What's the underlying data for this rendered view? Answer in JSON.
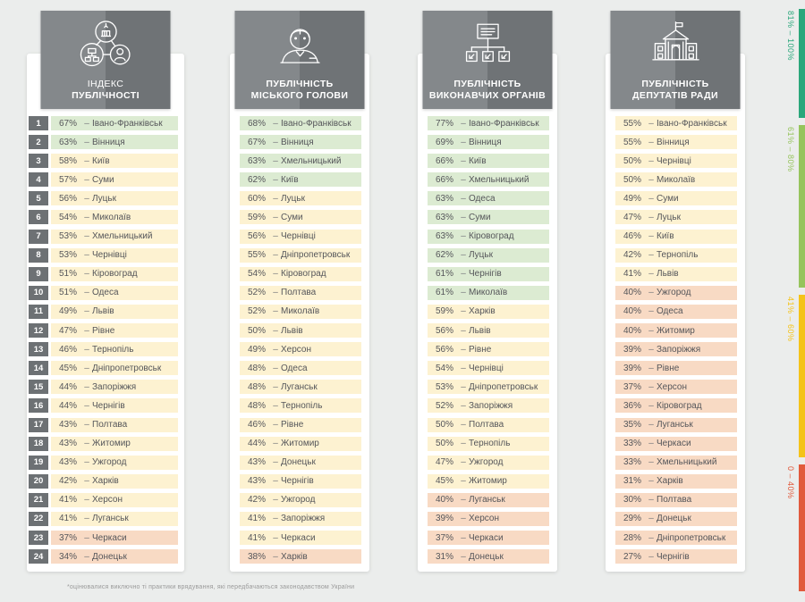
{
  "page": {
    "footnote": "*оцінювалися виключно ті практики врядування, які передбачаються законодавством України"
  },
  "tier_colors": {
    "green": "#dcebd2",
    "yellow": "#fdf2d1",
    "red": "#f8dac4"
  },
  "legend": {
    "items": [
      {
        "label": "81% – 100%",
        "color": "#2aa77b"
      },
      {
        "label": "61% – 80%",
        "color": "#96c45c"
      },
      {
        "label": "41% – 60%",
        "color": "#f4c319"
      },
      {
        "label": "0 – 40%",
        "color": "#e15a3c"
      }
    ]
  },
  "chart_data": {
    "type": "table",
    "title": "Індекс публічності міст України",
    "legend_bins": [
      "81%–100%",
      "61%–80%",
      "41%–60%",
      "0–40%"
    ],
    "columns": [
      "Індекс публічності",
      "Публічність міського голови",
      "Публічність виконавчих органів",
      "Публічність депутатів ради"
    ]
  },
  "columns": [
    {
      "id": "index",
      "icon": "publicity-index-icon",
      "title_line1": "ІНДЕКС",
      "title_line2": "ПУБЛІЧНОСТІ",
      "show_ranks": true,
      "rows": [
        {
          "rank": "1",
          "value": "67%",
          "city": "Івано-Франківськ",
          "tier": "green"
        },
        {
          "rank": "2",
          "value": "63%",
          "city": "Вінниця",
          "tier": "green"
        },
        {
          "rank": "3",
          "value": "58%",
          "city": "Київ",
          "tier": "yellow"
        },
        {
          "rank": "4",
          "value": "57%",
          "city": "Суми",
          "tier": "yellow"
        },
        {
          "rank": "5",
          "value": "56%",
          "city": "Луцьк",
          "tier": "yellow"
        },
        {
          "rank": "6",
          "value": "54%",
          "city": "Миколаїв",
          "tier": "yellow"
        },
        {
          "rank": "7",
          "value": "53%",
          "city": "Хмельницький",
          "tier": "yellow"
        },
        {
          "rank": "8",
          "value": "53%",
          "city": "Чернівці",
          "tier": "yellow"
        },
        {
          "rank": "9",
          "value": "51%",
          "city": "Кіровоград",
          "tier": "yellow"
        },
        {
          "rank": "10",
          "value": "51%",
          "city": "Одеса",
          "tier": "yellow"
        },
        {
          "rank": "11",
          "value": "49%",
          "city": "Львів",
          "tier": "yellow"
        },
        {
          "rank": "12",
          "value": "47%",
          "city": "Рівне",
          "tier": "yellow"
        },
        {
          "rank": "13",
          "value": "46%",
          "city": "Тернопіль",
          "tier": "yellow"
        },
        {
          "rank": "14",
          "value": "45%",
          "city": "Дніпропетровськ",
          "tier": "yellow"
        },
        {
          "rank": "15",
          "value": "44%",
          "city": "Запоріжжя",
          "tier": "yellow"
        },
        {
          "rank": "16",
          "value": "44%",
          "city": "Чернігів",
          "tier": "yellow"
        },
        {
          "rank": "17",
          "value": "43%",
          "city": "Полтава",
          "tier": "yellow"
        },
        {
          "rank": "18",
          "value": "43%",
          "city": "Житомир",
          "tier": "yellow"
        },
        {
          "rank": "19",
          "value": "43%",
          "city": "Ужгород",
          "tier": "yellow"
        },
        {
          "rank": "20",
          "value": "42%",
          "city": "Харків",
          "tier": "yellow"
        },
        {
          "rank": "21",
          "value": "41%",
          "city": "Херсон",
          "tier": "yellow"
        },
        {
          "rank": "22",
          "value": "41%",
          "city": "Луганськ",
          "tier": "yellow"
        },
        {
          "rank": "23",
          "value": "37%",
          "city": "Черкаси",
          "tier": "red"
        },
        {
          "rank": "24",
          "value": "34%",
          "city": "Донецьк",
          "tier": "red"
        }
      ]
    },
    {
      "id": "mayor",
      "icon": "mayor-icon",
      "title_line1": "ПУБЛІЧНІСТЬ",
      "title_line2": "МІСЬКОГО ГОЛОВИ",
      "show_ranks": false,
      "rows": [
        {
          "value": "68%",
          "city": "Івано-Франківськ",
          "tier": "green"
        },
        {
          "value": "67%",
          "city": "Вінниця",
          "tier": "green"
        },
        {
          "value": "63%",
          "city": "Хмельницький",
          "tier": "green"
        },
        {
          "value": "62%",
          "city": "Київ",
          "tier": "green"
        },
        {
          "value": "60%",
          "city": "Луцьк",
          "tier": "yellow"
        },
        {
          "value": "59%",
          "city": "Суми",
          "tier": "yellow"
        },
        {
          "value": "56%",
          "city": "Чернівці",
          "tier": "yellow"
        },
        {
          "value": "55%",
          "city": "Дніпропетровськ",
          "tier": "yellow"
        },
        {
          "value": "54%",
          "city": "Кіровоград",
          "tier": "yellow"
        },
        {
          "value": "52%",
          "city": "Полтава",
          "tier": "yellow"
        },
        {
          "value": "52%",
          "city": "Миколаїв",
          "tier": "yellow"
        },
        {
          "value": "50%",
          "city": "Львів",
          "tier": "yellow"
        },
        {
          "value": "49%",
          "city": "Херсон",
          "tier": "yellow"
        },
        {
          "value": "48%",
          "city": "Одеса",
          "tier": "yellow"
        },
        {
          "value": "48%",
          "city": "Луганськ",
          "tier": "yellow"
        },
        {
          "value": "48%",
          "city": "Тернопіль",
          "tier": "yellow"
        },
        {
          "value": "46%",
          "city": "Рівне",
          "tier": "yellow"
        },
        {
          "value": "44%",
          "city": "Житомир",
          "tier": "yellow"
        },
        {
          "value": "43%",
          "city": "Донецьк",
          "tier": "yellow"
        },
        {
          "value": "43%",
          "city": "Чернігів",
          "tier": "yellow"
        },
        {
          "value": "42%",
          "city": "Ужгород",
          "tier": "yellow"
        },
        {
          "value": "41%",
          "city": "Запоріжжя",
          "tier": "yellow"
        },
        {
          "value": "41%",
          "city": "Черкаси",
          "tier": "yellow"
        },
        {
          "value": "38%",
          "city": "Харків",
          "tier": "red"
        }
      ]
    },
    {
      "id": "executive",
      "icon": "executive-bodies-icon",
      "title_line1": "ПУБЛІЧНІСТЬ",
      "title_line2": "ВИКОНАВЧИХ ОРГАНІВ",
      "show_ranks": false,
      "rows": [
        {
          "value": "77%",
          "city": "Івано-Франківськ",
          "tier": "green"
        },
        {
          "value": "69%",
          "city": "Вінниця",
          "tier": "green"
        },
        {
          "value": "66%",
          "city": "Київ",
          "tier": "green"
        },
        {
          "value": "66%",
          "city": "Хмельницький",
          "tier": "green"
        },
        {
          "value": "63%",
          "city": "Одеса",
          "tier": "green"
        },
        {
          "value": "63%",
          "city": "Суми",
          "tier": "green"
        },
        {
          "value": "63%",
          "city": "Кіровоград",
          "tier": "green"
        },
        {
          "value": "62%",
          "city": "Луцьк",
          "tier": "green"
        },
        {
          "value": "61%",
          "city": "Чернігів",
          "tier": "green"
        },
        {
          "value": "61%",
          "city": "Миколаїв",
          "tier": "green"
        },
        {
          "value": "59%",
          "city": "Харків",
          "tier": "yellow"
        },
        {
          "value": "56%",
          "city": "Львів",
          "tier": "yellow"
        },
        {
          "value": "56%",
          "city": "Рівне",
          "tier": "yellow"
        },
        {
          "value": "54%",
          "city": "Чернівці",
          "tier": "yellow"
        },
        {
          "value": "53%",
          "city": "Дніпропетровськ",
          "tier": "yellow"
        },
        {
          "value": "52%",
          "city": "Запоріжжя",
          "tier": "yellow"
        },
        {
          "value": "50%",
          "city": "Полтава",
          "tier": "yellow"
        },
        {
          "value": "50%",
          "city": "Тернопіль",
          "tier": "yellow"
        },
        {
          "value": "47%",
          "city": "Ужгород",
          "tier": "yellow"
        },
        {
          "value": "45%",
          "city": "Житомир",
          "tier": "yellow"
        },
        {
          "value": "40%",
          "city": "Луганськ",
          "tier": "red"
        },
        {
          "value": "39%",
          "city": "Херсон",
          "tier": "red"
        },
        {
          "value": "37%",
          "city": "Черкаси",
          "tier": "red"
        },
        {
          "value": "31%",
          "city": "Донецьк",
          "tier": "red"
        }
      ]
    },
    {
      "id": "deputies",
      "icon": "council-deputies-icon",
      "title_line1": "ПУБЛІЧНІСТЬ",
      "title_line2": "ДЕПУТАТІВ РАДИ",
      "show_ranks": false,
      "rows": [
        {
          "value": "55%",
          "city": "Івано-Франківськ",
          "tier": "yellow"
        },
        {
          "value": "55%",
          "city": "Вінниця",
          "tier": "yellow"
        },
        {
          "value": "50%",
          "city": "Чернівці",
          "tier": "yellow"
        },
        {
          "value": "50%",
          "city": "Миколаїв",
          "tier": "yellow"
        },
        {
          "value": "49%",
          "city": "Суми",
          "tier": "yellow"
        },
        {
          "value": "47%",
          "city": "Луцьк",
          "tier": "yellow"
        },
        {
          "value": "46%",
          "city": "Київ",
          "tier": "yellow"
        },
        {
          "value": "42%",
          "city": "Тернопіль",
          "tier": "yellow"
        },
        {
          "value": "41%",
          "city": "Львів",
          "tier": "yellow"
        },
        {
          "value": "40%",
          "city": "Ужгород",
          "tier": "red"
        },
        {
          "value": "40%",
          "city": "Одеса",
          "tier": "red"
        },
        {
          "value": "40%",
          "city": "Житомир",
          "tier": "red"
        },
        {
          "value": "39%",
          "city": "Запоріжжя",
          "tier": "red"
        },
        {
          "value": "39%",
          "city": "Рівне",
          "tier": "red"
        },
        {
          "value": "37%",
          "city": "Херсон",
          "tier": "red"
        },
        {
          "value": "36%",
          "city": "Кіровоград",
          "tier": "red"
        },
        {
          "value": "35%",
          "city": "Луганськ",
          "tier": "red"
        },
        {
          "value": "33%",
          "city": "Черкаси",
          "tier": "red"
        },
        {
          "value": "33%",
          "city": "Хмельницький",
          "tier": "red"
        },
        {
          "value": "31%",
          "city": "Харків",
          "tier": "red"
        },
        {
          "value": "30%",
          "city": "Полтава",
          "tier": "red"
        },
        {
          "value": "29%",
          "city": "Донецьк",
          "tier": "red"
        },
        {
          "value": "28%",
          "city": "Дніпропетровськ",
          "tier": "red"
        },
        {
          "value": "27%",
          "city": "Чернігів",
          "tier": "red"
        }
      ]
    }
  ]
}
